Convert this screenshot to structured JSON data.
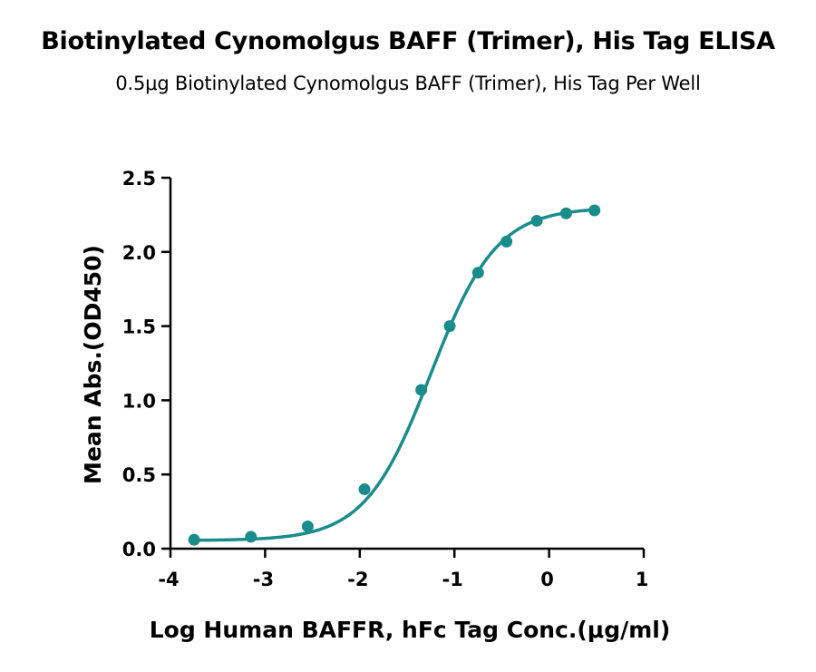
{
  "title": "Biotinylated Cynomolgus BAFF (Trimer), His Tag ELISA",
  "subtitle": "0.5μg Biotinylated Cynomolgus BAFF (Trimer), His Tag Per Well",
  "chart_data": {
    "type": "scatter",
    "title": "Biotinylated Cynomolgus BAFF (Trimer), His Tag ELISA",
    "subtitle": "0.5μg Biotinylated Cynomolgus BAFF (Trimer), His Tag Per Well",
    "xlabel": "Log Human BAFFR, hFc Tag Conc.(μg/ml)",
    "ylabel": "Mean Abs.(OD450)",
    "xlim": [
      -4,
      1
    ],
    "ylim": [
      0,
      2.5
    ],
    "xticks": [
      "-4",
      "-3",
      "-2",
      "-1",
      "0",
      "1"
    ],
    "yticks": [
      "0.0",
      "0.5",
      "1.0",
      "1.5",
      "2.0",
      "2.5"
    ],
    "grid": false,
    "legend": "none",
    "color": "#1a8c8c",
    "fit": "4PL sigmoid curve",
    "series": [
      {
        "x": [
          -3.75,
          -3.15,
          -2.55,
          -1.95,
          -1.35,
          -1.05,
          -0.75,
          -0.45,
          -0.13,
          0.18,
          0.48
        ],
        "y": [
          0.06,
          0.08,
          0.15,
          0.4,
          1.07,
          1.5,
          1.86,
          2.07,
          2.21,
          2.26,
          2.28
        ]
      }
    ]
  }
}
